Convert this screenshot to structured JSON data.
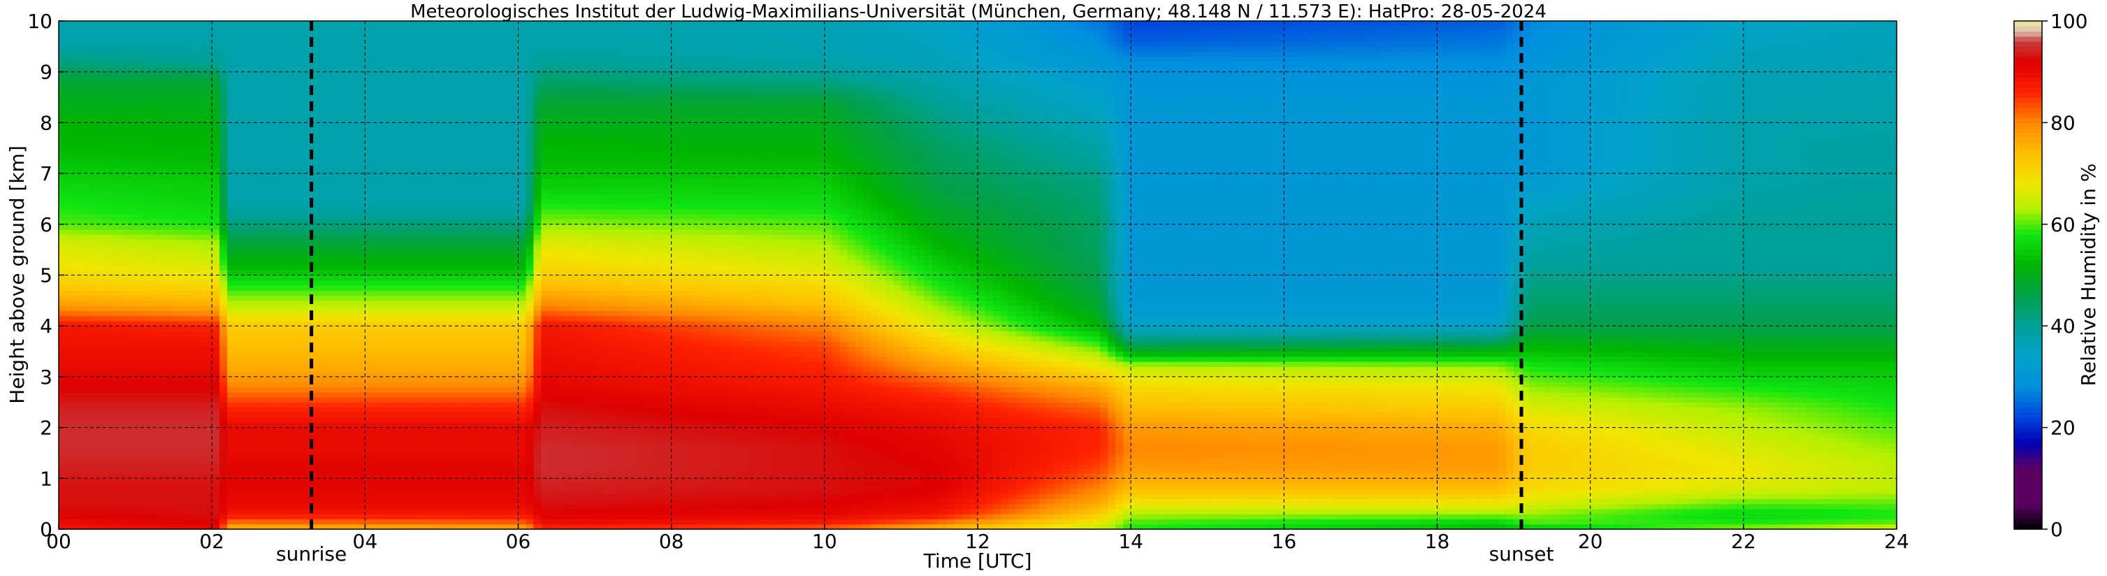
{
  "chart_data": {
    "type": "heatmap",
    "title": "Meteorologisches Institut der Ludwig-Maximilians-Universität (München, Germany; 48.148 N / 11.573 E):    HatPro: 28-05-2024",
    "xlabel": "Time [UTC]",
    "ylabel": "Height above ground [km]",
    "colorbar_label": "Relative Humidity in %",
    "xlim": [
      0,
      24
    ],
    "ylim": [
      0,
      10
    ],
    "x_ticks": [
      "00",
      "02",
      "04",
      "06",
      "08",
      "10",
      "12",
      "14",
      "16",
      "18",
      "20",
      "22",
      "24"
    ],
    "y_ticks": [
      "0",
      "1",
      "2",
      "3",
      "4",
      "5",
      "6",
      "7",
      "8",
      "9",
      "10"
    ],
    "colorbar_ticks": [
      "0",
      "20",
      "40",
      "60",
      "80",
      "100"
    ],
    "colorbar_range": [
      0,
      100
    ],
    "grid": true,
    "annotations": [
      {
        "label": "sunrise",
        "time": 3.3
      },
      {
        "label": "sunset",
        "time": 19.1
      }
    ],
    "colorscale": [
      {
        "rh": 0,
        "color": "#000000"
      },
      {
        "rh": 5,
        "color": "#5b0063"
      },
      {
        "rh": 12,
        "color": "#5b0063"
      },
      {
        "rh": 17,
        "color": "#0000b4"
      },
      {
        "rh": 22,
        "color": "#0044dd"
      },
      {
        "rh": 28,
        "color": "#0090dd"
      },
      {
        "rh": 34,
        "color": "#00a2c8"
      },
      {
        "rh": 40,
        "color": "#00a09a"
      },
      {
        "rh": 46,
        "color": "#00a04a"
      },
      {
        "rh": 52,
        "color": "#00b400"
      },
      {
        "rh": 58,
        "color": "#11e611"
      },
      {
        "rh": 63,
        "color": "#b4f000"
      },
      {
        "rh": 68,
        "color": "#f0e600"
      },
      {
        "rh": 74,
        "color": "#ffbe00"
      },
      {
        "rh": 80,
        "color": "#ff8800"
      },
      {
        "rh": 86,
        "color": "#ff2200"
      },
      {
        "rh": 92,
        "color": "#dd0000"
      },
      {
        "rh": 96,
        "color": "#c83c3c"
      },
      {
        "rh": 98,
        "color": "#dcbeb4"
      },
      {
        "rh": 100,
        "color": "#ebeb96"
      }
    ],
    "rh_profiles": {
      "heights_km": [
        0.0,
        0.15,
        0.3,
        0.5,
        0.8,
        1.2,
        1.6,
        2.0,
        2.4,
        2.8,
        3.2,
        3.6,
        4.0,
        4.4,
        4.8,
        5.2,
        5.6,
        6.0,
        6.4,
        6.8,
        7.2,
        7.6,
        8.0,
        8.4,
        8.8,
        9.2,
        9.6,
        10.0
      ],
      "keyframes": [
        {
          "time": 0.0,
          "rh": [
            88,
            90,
            92,
            93,
            93,
            94,
            95,
            95,
            94,
            92,
            90,
            89,
            88,
            78,
            72,
            68,
            66,
            60,
            58,
            56,
            54,
            52,
            52,
            50,
            48,
            42,
            38,
            38
          ]
        },
        {
          "time": 2.1,
          "rh": [
            90,
            92,
            93,
            93,
            93,
            94,
            95,
            95,
            94,
            92,
            90,
            89,
            86,
            76,
            70,
            66,
            63,
            58,
            56,
            55,
            53,
            52,
            51,
            50,
            48,
            40,
            38,
            38
          ]
        },
        {
          "time": 2.2,
          "rh": [
            74,
            82,
            88,
            90,
            91,
            91,
            90,
            90,
            86,
            80,
            76,
            74,
            72,
            64,
            58,
            52,
            48,
            42,
            38,
            38,
            38,
            38,
            38,
            38,
            38,
            38,
            38,
            38
          ]
        },
        {
          "time": 6.1,
          "rh": [
            76,
            83,
            88,
            90,
            91,
            91,
            90,
            90,
            86,
            80,
            76,
            74,
            72,
            64,
            58,
            52,
            48,
            42,
            38,
            38,
            38,
            38,
            38,
            38,
            38,
            38,
            38,
            38
          ]
        },
        {
          "time": 6.3,
          "rh": [
            86,
            90,
            92,
            93,
            94,
            95,
            95,
            94,
            93,
            91,
            90,
            89,
            88,
            80,
            74,
            70,
            67,
            62,
            58,
            55,
            53,
            52,
            50,
            48,
            44,
            40,
            38,
            38
          ]
        },
        {
          "time": 10.0,
          "rh": [
            82,
            88,
            91,
            92,
            93,
            93,
            93,
            92,
            90,
            88,
            86,
            84,
            80,
            74,
            70,
            66,
            63,
            60,
            57,
            55,
            53,
            51,
            50,
            48,
            42,
            38,
            37,
            37
          ]
        },
        {
          "time": 11.5,
          "rh": [
            74,
            82,
            88,
            90,
            92,
            92,
            91,
            90,
            88,
            84,
            78,
            72,
            66,
            62,
            58,
            55,
            52,
            50,
            48,
            46,
            45,
            44,
            42,
            40,
            38,
            36,
            35,
            34
          ]
        },
        {
          "time": 13.6,
          "rh": [
            64,
            68,
            72,
            76,
            80,
            84,
            86,
            86,
            82,
            76,
            68,
            60,
            52,
            48,
            46,
            45,
            44,
            44,
            43,
            42,
            40,
            38,
            36,
            34,
            32,
            30,
            28,
            26
          ]
        },
        {
          "time": 14.0,
          "rh": [
            58,
            60,
            63,
            68,
            74,
            78,
            80,
            78,
            74,
            70,
            64,
            46,
            34,
            31,
            30,
            30,
            30,
            30,
            30,
            30,
            30,
            30,
            30,
            30,
            29,
            28,
            24,
            22
          ]
        },
        {
          "time": 18.8,
          "rh": [
            52,
            56,
            62,
            68,
            74,
            78,
            78,
            76,
            72,
            68,
            62,
            48,
            34,
            31,
            30,
            30,
            30,
            30,
            30,
            30,
            30,
            30,
            30,
            30,
            29,
            28,
            26,
            24
          ]
        },
        {
          "time": 19.2,
          "rh": [
            54,
            60,
            62,
            66,
            70,
            72,
            72,
            70,
            66,
            62,
            58,
            52,
            46,
            44,
            42,
            40,
            38,
            36,
            34,
            32,
            30,
            30,
            30,
            30,
            30,
            29,
            28,
            27
          ]
        },
        {
          "time": 22.0,
          "rh": [
            62,
            58,
            56,
            60,
            66,
            68,
            66,
            64,
            62,
            58,
            54,
            50,
            46,
            44,
            42,
            40,
            40,
            40,
            39,
            38,
            38,
            38,
            38,
            37,
            37,
            36,
            35,
            34
          ]
        },
        {
          "time": 24.0,
          "rh": [
            66,
            60,
            58,
            60,
            64,
            64,
            62,
            60,
            58,
            56,
            54,
            50,
            46,
            44,
            42,
            40,
            40,
            40,
            40,
            39,
            39,
            39,
            38,
            38,
            37,
            37,
            36,
            36
          ]
        }
      ]
    }
  }
}
